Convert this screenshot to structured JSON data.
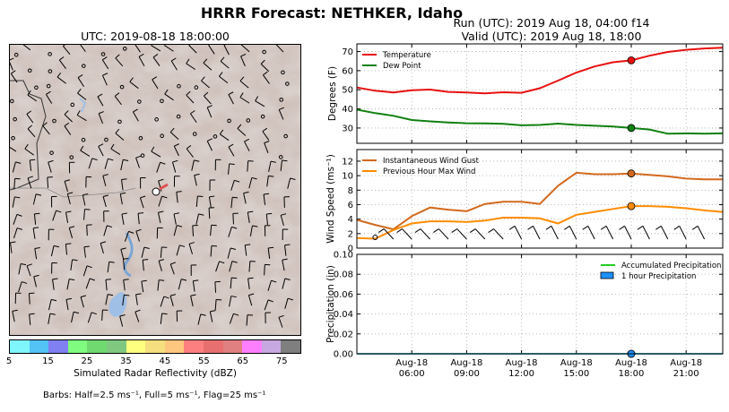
{
  "title": "HRRR Forecast: NETHKER, Idaho",
  "run_text": "Run (UTC): 2019 Aug 18, 04:00 f14",
  "valid_text": "Valid (UTC): 2019 Aug 18, 18:00",
  "map": {
    "title": "UTC: 2019-08-18 18:00:00",
    "colorbar": {
      "label": "Simulated Radar Reflectivity (dBZ)",
      "tick_labels": [
        "5",
        "15",
        "25",
        "35",
        "45",
        "55",
        "65",
        "75"
      ],
      "colors": [
        "#7ff6fb",
        "#52c3f4",
        "#8080f2",
        "#7ffb7f",
        "#70d970",
        "#80c880",
        "#fefe7f",
        "#f6df7f",
        "#fec77f",
        "#fe7f7f",
        "#e86f6f",
        "#e08080",
        "#fe7ffe",
        "#c8a8e0",
        "#7f7f7f"
      ]
    },
    "barb_note": "Barbs: Half=2.5 ms⁻¹, Full=5 ms⁻¹, Flag=25 ms⁻¹"
  },
  "chart_data": [
    {
      "type": "line",
      "ylabel": "Degrees (F)",
      "ylim": [
        22,
        74
      ],
      "yticks": [
        30,
        40,
        50,
        60,
        70
      ],
      "x": [
        3,
        4,
        5,
        6,
        7,
        8,
        9,
        10,
        11,
        12,
        13,
        14,
        15,
        16,
        17,
        18,
        19,
        20,
        21,
        22,
        23
      ],
      "xtick_values": [
        6,
        9,
        12,
        15,
        18,
        21
      ],
      "xtick_labels": [
        [
          "Aug-18",
          "06:00"
        ],
        [
          "Aug-18",
          "09:00"
        ],
        [
          "Aug-18",
          "12:00"
        ],
        [
          "Aug-18",
          "15:00"
        ],
        [
          "Aug-18",
          "18:00"
        ],
        [
          "Aug-18",
          "21:00"
        ]
      ],
      "legend_position": "top-left",
      "grid": true,
      "highlight_x": 18,
      "series": [
        {
          "name": "Temperature",
          "color": "#e81010",
          "values": [
            51.2,
            49.5,
            48.6,
            49.8,
            50.1,
            48.9,
            48.6,
            48.1,
            48.7,
            48.4,
            50.8,
            54.8,
            59.0,
            62.2,
            64.4,
            65.4,
            67.8,
            69.8,
            70.9,
            71.6,
            72.0
          ]
        },
        {
          "name": "Dew Point",
          "color": "#108010",
          "values": [
            39.6,
            37.8,
            36.4,
            34.2,
            33.5,
            32.9,
            32.5,
            32.4,
            32.2,
            31.4,
            31.6,
            32.3,
            31.6,
            31.2,
            30.8,
            30.0,
            29.2,
            27.0,
            27.2,
            27.0,
            27.2
          ]
        }
      ]
    },
    {
      "type": "line",
      "ylabel": "Wind Speed (ms⁻¹)",
      "ylim": [
        0,
        13.6
      ],
      "yticks": [
        0,
        2,
        4,
        6,
        8,
        10,
        12
      ],
      "x": [
        3,
        4,
        5,
        6,
        7,
        8,
        9,
        10,
        11,
        12,
        13,
        14,
        15,
        16,
        17,
        18,
        19,
        20,
        21,
        22,
        23
      ],
      "legend_position": "top-left",
      "grid": true,
      "highlight_x": 18,
      "series": [
        {
          "name": "Instantaneous Wind Gust",
          "color": "#d2691e",
          "values": [
            3.9,
            3.2,
            2.6,
            4.4,
            5.6,
            5.3,
            5.1,
            6.1,
            6.4,
            6.4,
            6.1,
            8.6,
            10.4,
            10.2,
            10.2,
            10.3,
            10.1,
            9.9,
            9.6,
            9.5,
            9.5
          ]
        },
        {
          "name": "Previous Hour Max Wind",
          "color": "#ff8c00",
          "values": [
            1.4,
            1.3,
            2.5,
            3.4,
            3.7,
            3.7,
            3.6,
            3.8,
            4.2,
            4.2,
            4.1,
            3.4,
            4.6,
            5.0,
            5.4,
            5.8,
            5.8,
            5.7,
            5.5,
            5.2,
            5.0
          ]
        }
      ]
    },
    {
      "type": "line",
      "ylabel": "Precipitation (in)",
      "ylim": [
        0,
        0.1
      ],
      "yticks": [
        0.0,
        0.02,
        0.04,
        0.06,
        0.08,
        0.1
      ],
      "ytick_labels": [
        "0.00",
        "0.02",
        "0.04",
        "0.06",
        "0.08",
        "0.10"
      ],
      "x": [
        3,
        4,
        5,
        6,
        7,
        8,
        9,
        10,
        11,
        12,
        13,
        14,
        15,
        16,
        17,
        18,
        19,
        20,
        21,
        22,
        23
      ],
      "legend_position": "top-right",
      "grid": true,
      "highlight_x": 18,
      "series": [
        {
          "name": "Accumulated Precipitation",
          "color": "#22cc22",
          "values": [
            0,
            0,
            0,
            0,
            0,
            0,
            0,
            0,
            0,
            0,
            0,
            0,
            0,
            0,
            0,
            0,
            0,
            0,
            0,
            0,
            0
          ]
        },
        {
          "name": "1 hour Precipitation",
          "color": "#1e90ff",
          "values": [
            0,
            0,
            0,
            0,
            0,
            0,
            0,
            0,
            0,
            0,
            0,
            0,
            0,
            0,
            0,
            0,
            0,
            0,
            0,
            0,
            0
          ]
        }
      ]
    }
  ]
}
